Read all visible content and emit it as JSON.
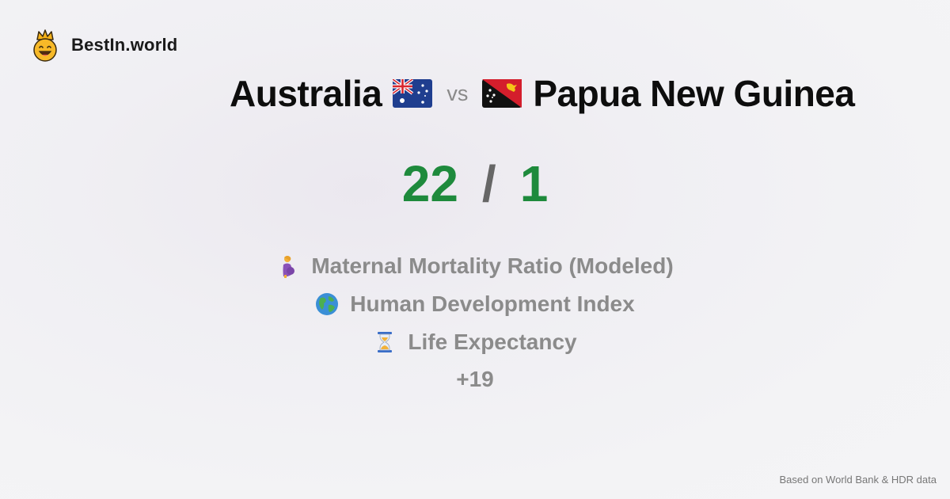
{
  "brand": {
    "name": "BestIn.world",
    "icon": "crown-smiley-icon"
  },
  "comparison": {
    "country_a": {
      "name": "Australia",
      "flag_icon": "australia-flag-icon"
    },
    "vs_label": "vs",
    "country_b": {
      "name": "Papua New Guinea",
      "flag_icon": "papua-new-guinea-flag-icon"
    }
  },
  "score": {
    "a": "22",
    "separator": "/",
    "b": "1",
    "color": "#1e8a3c"
  },
  "metrics": [
    {
      "label": "Maternal Mortality Ratio (Modeled)",
      "icon": "pregnant-woman-icon"
    },
    {
      "label": "Human Development Index",
      "icon": "globe-icon"
    },
    {
      "label": "Life Expectancy",
      "icon": "hourglass-icon"
    }
  ],
  "more_label": "+19",
  "footer": {
    "source": "Based on World Bank & HDR data"
  }
}
